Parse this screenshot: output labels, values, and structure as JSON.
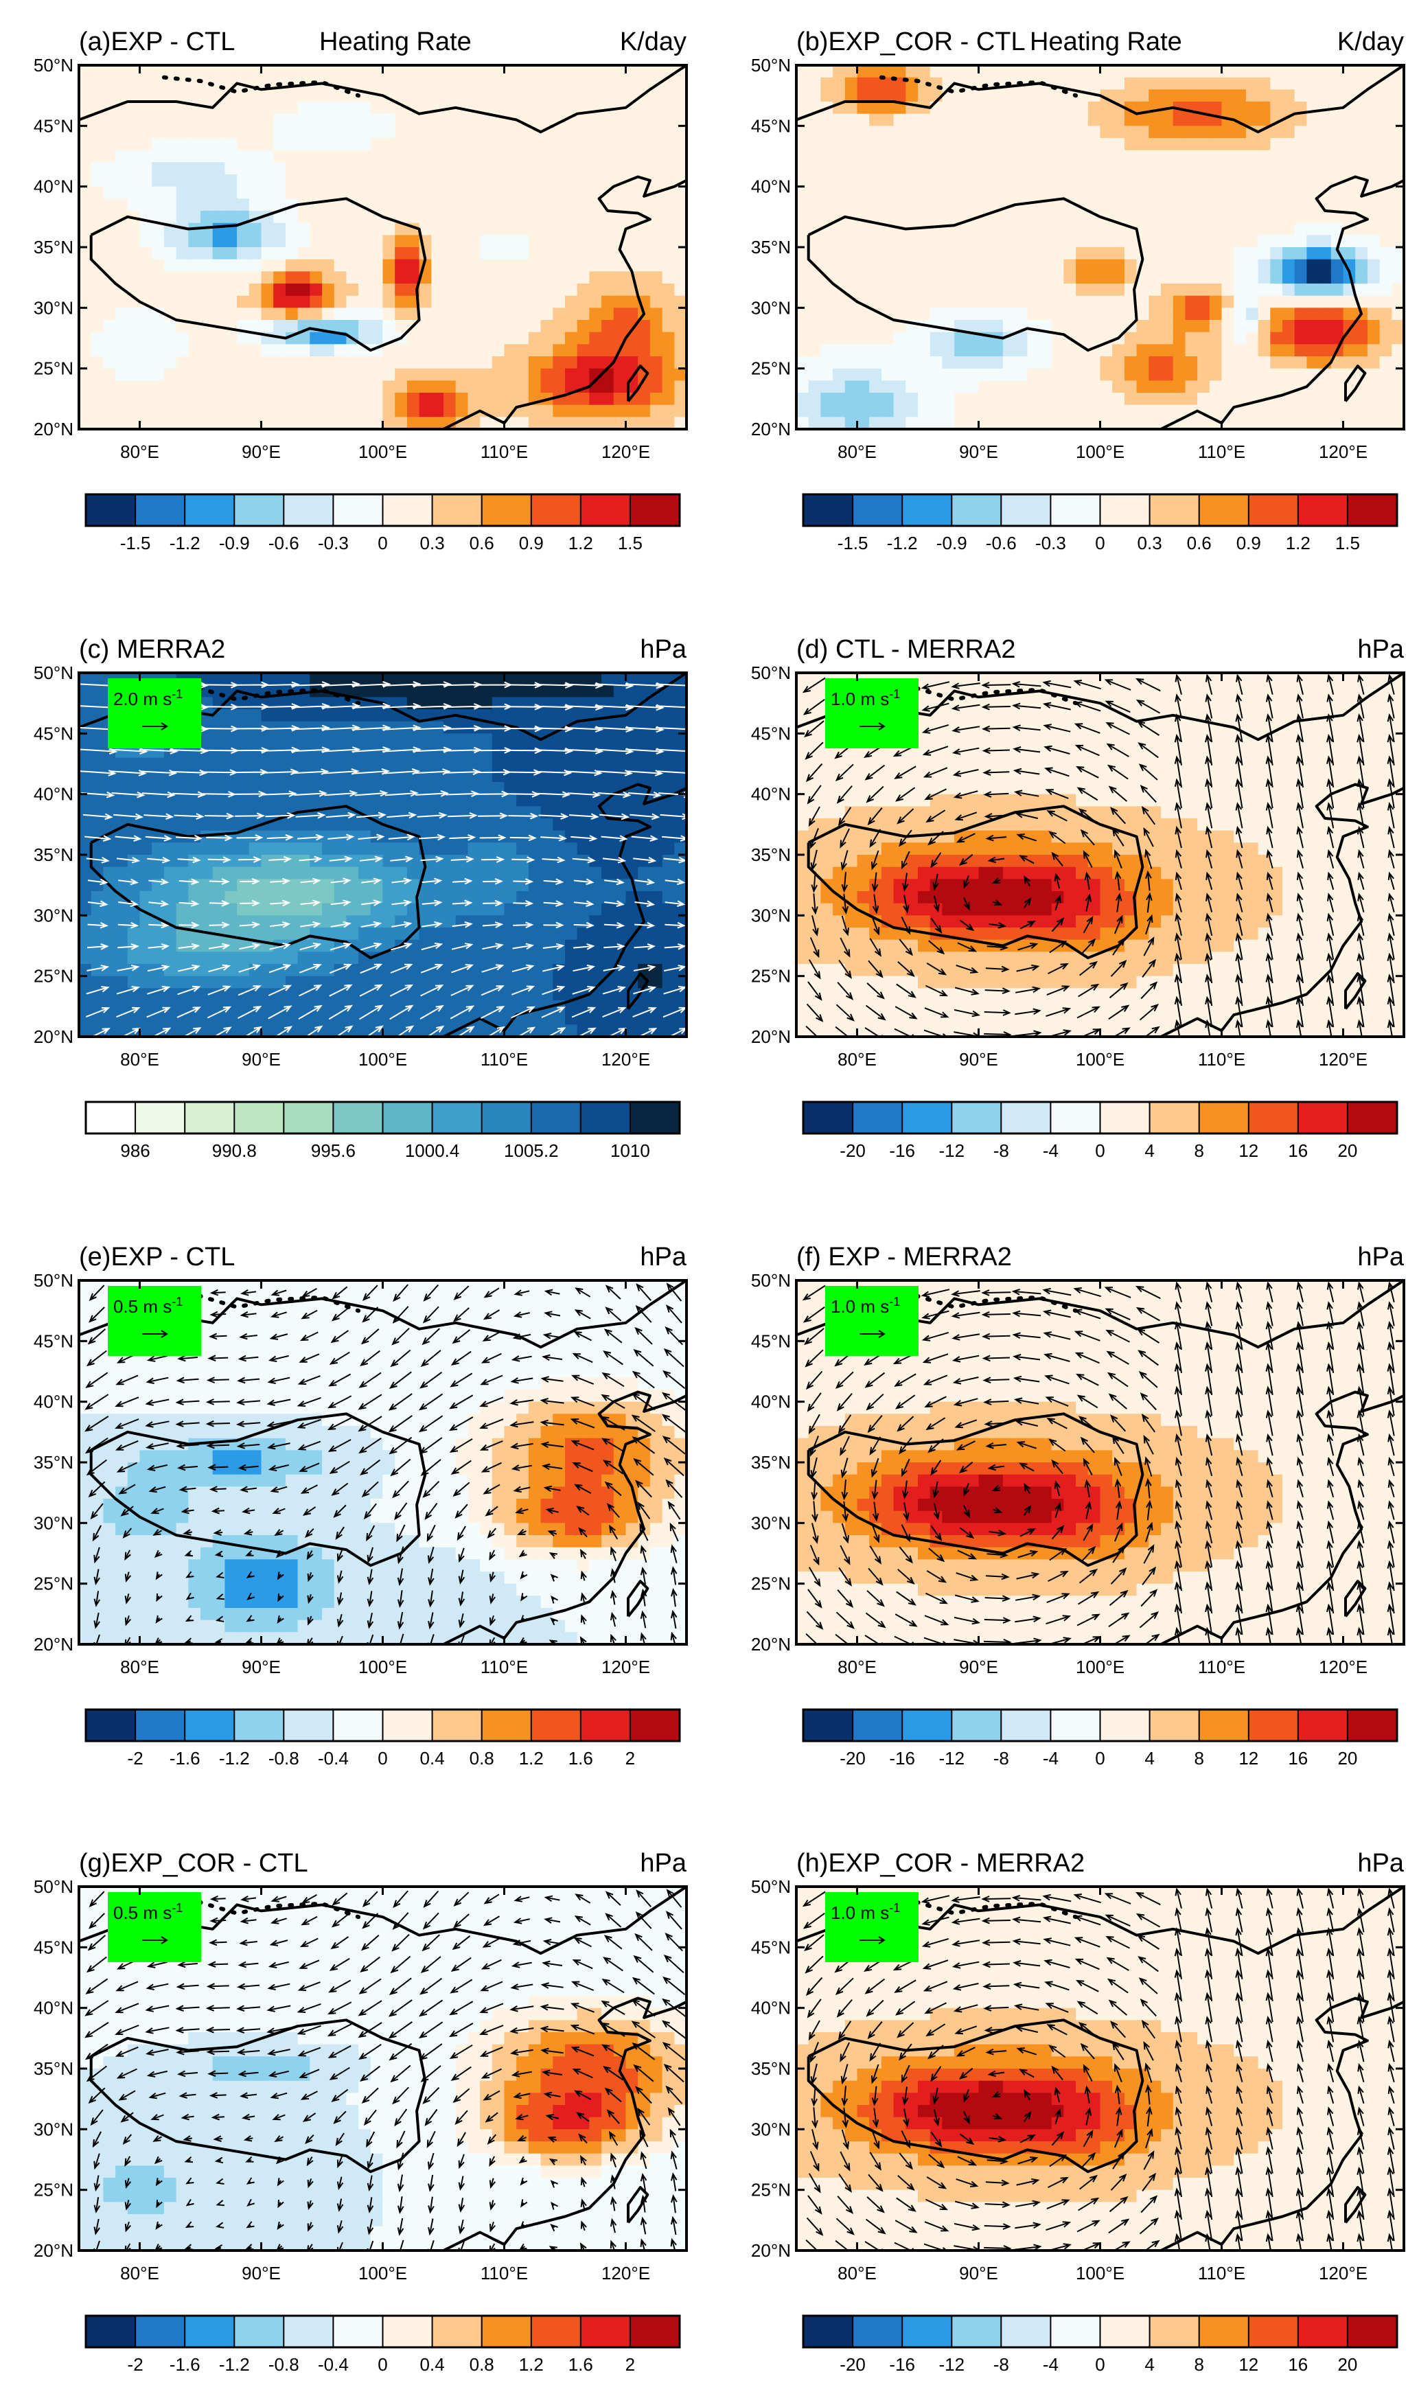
{
  "figure": {
    "lon_ticks": [
      "80°E",
      "90°E",
      "100°E",
      "110°E",
      "120°E"
    ],
    "lat_ticks": [
      "50°N",
      "45°N",
      "40°N",
      "35°N",
      "30°N",
      "25°N",
      "20°N"
    ]
  },
  "colors": {
    "div_heat": [
      "#08306b",
      "#1f78c8",
      "#2b9be8",
      "#8fd2ee",
      "#cfe9f6",
      "#f3fbfd",
      "#fff3e3",
      "#fdc98c",
      "#f7911f",
      "#f0561e",
      "#e41e1e",
      "#b3090f"
    ],
    "div_pres": [
      "#08306b",
      "#1f78c8",
      "#2b9be8",
      "#8fd2ee",
      "#cfe9f6",
      "#f3fbfd",
      "#fff3e3",
      "#fdc98c",
      "#f7911f",
      "#f0561e",
      "#e41e1e",
      "#b3090f"
    ],
    "seq_blue": [
      "#ffffff",
      "#eef8ea",
      "#d7f0d2",
      "#bfe6c2",
      "#a8dcc0",
      "#7cc8c4",
      "#5fb6c7",
      "#3f9fcb",
      "#2b86c0",
      "#1a6aab",
      "#0b4d8e",
      "#08263f"
    ],
    "highlight_box": "#00ff00"
  },
  "chart_data": [
    {
      "type": "heatmap",
      "title": "(a)EXP - CTL",
      "subtitle": "Heating Rate",
      "unit": "K/day",
      "x_range": [
        75,
        125
      ],
      "y_range": [
        20,
        50
      ],
      "colorbar": {
        "palette": "div_heat",
        "levels": [
          "-1.5",
          "-1.2",
          "-0.9",
          "-0.6",
          "-0.3",
          "0",
          "0.3",
          "0.6",
          "0.9",
          "1.2",
          "1.5"
        ]
      },
      "field": "a",
      "vectors": null
    },
    {
      "type": "heatmap",
      "title": "(b)EXP_COR - CTL",
      "subtitle": "Heating Rate",
      "unit": "K/day",
      "x_range": [
        75,
        125
      ],
      "y_range": [
        20,
        50
      ],
      "colorbar": {
        "palette": "div_heat",
        "levels": [
          "-1.5",
          "-1.2",
          "-0.9",
          "-0.6",
          "-0.3",
          "0",
          "0.3",
          "0.6",
          "0.9",
          "1.2",
          "1.5"
        ]
      },
      "field": "b",
      "vectors": null
    },
    {
      "type": "heatmap",
      "title": "(c) MERRA2",
      "subtitle": "",
      "unit": "hPa",
      "x_range": [
        75,
        125
      ],
      "y_range": [
        20,
        50
      ],
      "colorbar": {
        "palette": "seq_blue",
        "levels": [
          "986",
          "",
          "990.8",
          "",
          "995.6",
          "",
          "1000.4",
          "",
          "1005.2",
          "",
          "1010"
        ]
      },
      "field": "c",
      "vectors": {
        "color": "#ffffff",
        "ref": "2.0 m s",
        "ref_sup": "-1"
      }
    },
    {
      "type": "heatmap",
      "title": "(d) CTL - MERRA2",
      "subtitle": "",
      "unit": "hPa",
      "x_range": [
        75,
        125
      ],
      "y_range": [
        20,
        50
      ],
      "colorbar": {
        "palette": "div_pres",
        "levels": [
          "-20",
          "-16",
          "-12",
          "-8",
          "-4",
          "0",
          "4",
          "8",
          "12",
          "16",
          "20"
        ]
      },
      "field": "d",
      "vectors": {
        "color": "#000000",
        "ref": "1.0 m s",
        "ref_sup": "-1"
      }
    },
    {
      "type": "heatmap",
      "title": "(e)EXP - CTL",
      "subtitle": "",
      "unit": "hPa",
      "x_range": [
        75,
        125
      ],
      "y_range": [
        20,
        50
      ],
      "colorbar": {
        "palette": "div_pres",
        "levels": [
          "-2",
          "-1.6",
          "-1.2",
          "-0.8",
          "-0.4",
          "0",
          "0.4",
          "0.8",
          "1.2",
          "1.6",
          "2"
        ]
      },
      "field": "e",
      "vectors": {
        "color": "#000000",
        "ref": "0.5 m s",
        "ref_sup": "-1"
      }
    },
    {
      "type": "heatmap",
      "title": "(f) EXP - MERRA2",
      "subtitle": "",
      "unit": "hPa",
      "x_range": [
        75,
        125
      ],
      "y_range": [
        20,
        50
      ],
      "colorbar": {
        "palette": "div_pres",
        "levels": [
          "-20",
          "-16",
          "-12",
          "-8",
          "-4",
          "0",
          "4",
          "8",
          "12",
          "16",
          "20"
        ]
      },
      "field": "d",
      "vectors": {
        "color": "#000000",
        "ref": "1.0 m s",
        "ref_sup": "-1"
      }
    },
    {
      "type": "heatmap",
      "title": "(g)EXP_COR - CTL",
      "subtitle": "",
      "unit": "hPa",
      "x_range": [
        75,
        125
      ],
      "y_range": [
        20,
        50
      ],
      "colorbar": {
        "palette": "div_pres",
        "levels": [
          "-2",
          "-1.6",
          "-1.2",
          "-0.8",
          "-0.4",
          "0",
          "0.4",
          "0.8",
          "1.2",
          "1.6",
          "2"
        ]
      },
      "field": "g",
      "vectors": {
        "color": "#000000",
        "ref": "0.5 m s",
        "ref_sup": "-1"
      }
    },
    {
      "type": "heatmap",
      "title": "(h)EXP_COR - MERRA2",
      "subtitle": "",
      "unit": "hPa",
      "x_range": [
        75,
        125
      ],
      "y_range": [
        20,
        50
      ],
      "colorbar": {
        "palette": "div_pres",
        "levels": [
          "-20",
          "-16",
          "-12",
          "-8",
          "-4",
          "0",
          "4",
          "8",
          "12",
          "16",
          "20"
        ]
      },
      "field": "d",
      "vectors": {
        "color": "#000000",
        "ref": "1.0 m s",
        "ref_sup": "-1"
      }
    }
  ]
}
